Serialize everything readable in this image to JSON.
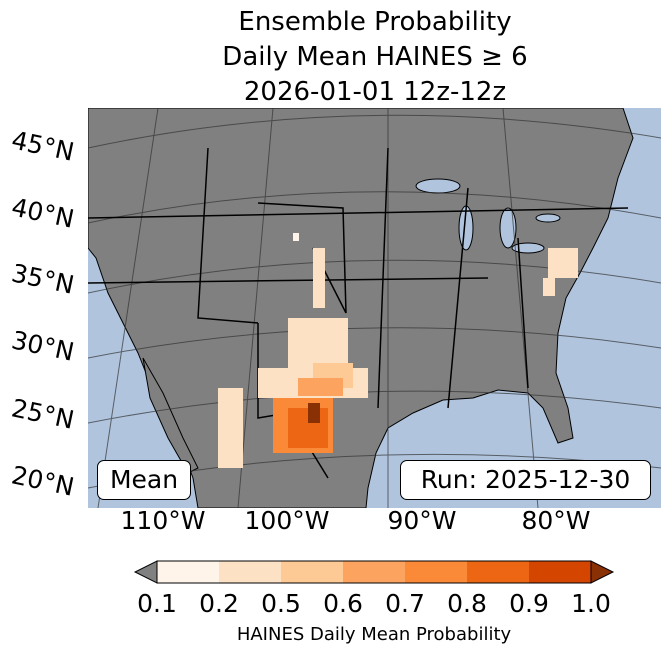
{
  "title": {
    "line1": "Ensemble Probability",
    "line2": "Daily Mean HAINES ≥ 6",
    "line3": "2026-01-01 12z-12z"
  },
  "lat_labels": [
    "45°N",
    "40°N",
    "35°N",
    "30°N",
    "25°N",
    "20°N"
  ],
  "lon_labels": [
    "110°W",
    "100°W",
    "90°W",
    "80°W"
  ],
  "boxes": {
    "left": "Mean",
    "right": "Run: 2025-12-30"
  },
  "colorbar": {
    "ticks": [
      "0.1",
      "0.2",
      "0.5",
      "0.6",
      "0.7",
      "0.8",
      "0.9",
      "1.0"
    ],
    "colors": [
      "#fff4ea",
      "#fde1c5",
      "#fdc995",
      "#fca45f",
      "#fb8a38",
      "#ed6614",
      "#d44500",
      "#8a3005"
    ],
    "under_color": "#808080",
    "label": "HAINES Daily Mean Probability"
  },
  "colors": {
    "ocean": "#b0c4de",
    "land": "#808080"
  }
}
